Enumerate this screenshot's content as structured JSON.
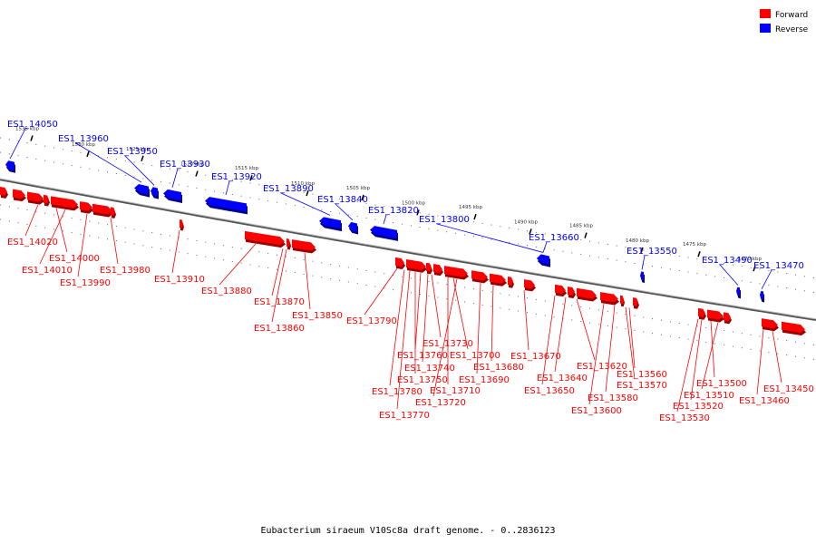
{
  "caption": "Eubacterium siraeum V10Sc8a draft genome. - 0..2836123",
  "legend": [
    {
      "label": "Forward",
      "color": "#ff0000"
    },
    {
      "label": "Reverse",
      "color": "#0000ff"
    }
  ],
  "colors": {
    "forward": "#ff0000",
    "reverse": "#0000ff",
    "backbone": "#8a8a8a"
  },
  "ticks": [
    "1535 kbp",
    "1530 kbp",
    "1525 kbp",
    "1520 kbp",
    "1515 kbp",
    "1510 kbp",
    "1505 kbp",
    "1500 kbp",
    "1495 kbp",
    "1490 kbp",
    "1485 kbp",
    "1480 kbp",
    "1475 kbp",
    "1470 kbp"
  ],
  "reverse_genes": [
    "ES1_14050",
    "ES1_13960",
    "ES1_13950",
    "ES1_13930",
    "ES1_13920",
    "ES1_13890",
    "ES1_13840",
    "ES1_13820",
    "ES1_13800",
    "ES1_13660",
    "ES1_13550",
    "ES1_13490",
    "ES1_13470"
  ],
  "forward_genes": [
    "ES1_14020",
    "ES1_14000",
    "ES1_14010",
    "ES1_13990",
    "ES1_13980",
    "ES1_13910",
    "ES1_13880",
    "ES1_13870",
    "ES1_13860",
    "ES1_13850",
    "ES1_13790",
    "ES1_13730",
    "ES1_13760",
    "ES1_13700",
    "ES1_13740",
    "ES1_13750",
    "ES1_13690",
    "ES1_13710",
    "ES1_13780",
    "ES1_13720",
    "ES1_13770",
    "ES1_13670",
    "ES1_13680",
    "ES1_13640",
    "ES1_13620",
    "ES1_13650",
    "ES1_13560",
    "ES1_13570",
    "ES1_13580",
    "ES1_13600",
    "ES1_13500",
    "ES1_13510",
    "ES1_13520",
    "ES1_13530",
    "ES1_13450",
    "ES1_13460"
  ]
}
